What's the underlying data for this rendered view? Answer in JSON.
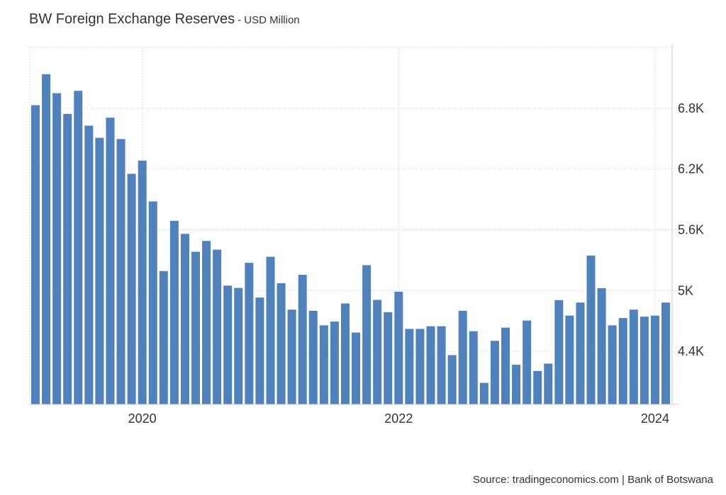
{
  "header": {
    "title": "BW Foreign Exchange Reserves",
    "subtitle": "- USD Million"
  },
  "footer": {
    "source": "Source: tradingeconomics.com | Bank of Botswana"
  },
  "colors": {
    "bar": "#4f81bd",
    "grid": "#dddddd",
    "text": "#333333"
  },
  "chart_data": {
    "type": "bar",
    "title": "BW Foreign Exchange Reserves - USD Million",
    "xlabel": "",
    "ylabel": "USD Million",
    "ylim": [
      3877,
      7400
    ],
    "grid": true,
    "y_axis_side": "right",
    "y_ticks": [
      4400,
      5000,
      5600,
      6200,
      6800
    ],
    "y_tick_labels": [
      "4.4K",
      "5K",
      "5.6K",
      "6.2K",
      "6.8K"
    ],
    "x_ticks": [
      {
        "label": "2020",
        "category": "Jan 2020"
      },
      {
        "label": "2022",
        "category": "Jan 2022"
      },
      {
        "label": "2024",
        "category": "Jan 2024"
      }
    ],
    "categories": [
      "Mar 2019",
      "Apr 2019",
      "May 2019",
      "Jun 2019",
      "Jul 2019",
      "Aug 2019",
      "Sep 2019",
      "Oct 2019",
      "Nov 2019",
      "Dec 2019",
      "Jan 2020",
      "Feb 2020",
      "Mar 2020",
      "Apr 2020",
      "May 2020",
      "Jun 2020",
      "Jul 2020",
      "Aug 2020",
      "Sep 2020",
      "Oct 2020",
      "Nov 2020",
      "Dec 2020",
      "Jan 2021",
      "Feb 2021",
      "Mar 2021",
      "Apr 2021",
      "May 2021",
      "Jun 2021",
      "Jul 2021",
      "Aug 2021",
      "Sep 2021",
      "Oct 2021",
      "Nov 2021",
      "Dec 2021",
      "Jan 2022",
      "Feb 2022",
      "Mar 2022",
      "Apr 2022",
      "May 2022",
      "Jun 2022",
      "Jul 2022",
      "Aug 2022",
      "Sep 2022",
      "Oct 2022",
      "Nov 2022",
      "Dec 2022",
      "Jan 2023",
      "Feb 2023",
      "Mar 2023",
      "Apr 2023",
      "May 2023",
      "Jun 2023",
      "Jul 2023",
      "Aug 2023",
      "Sep 2023",
      "Oct 2023",
      "Nov 2023",
      "Dec 2023",
      "Jan 2024",
      "Feb 2024"
    ],
    "values": [
      6830,
      7136,
      6948,
      6744,
      6972,
      6628,
      6508,
      6707,
      6496,
      6153,
      6283,
      5880,
      5193,
      5689,
      5560,
      5383,
      5490,
      5404,
      5049,
      5026,
      5274,
      4931,
      5334,
      5073,
      4812,
      5156,
      4801,
      4657,
      4694,
      4873,
      4586,
      5251,
      4908,
      4787,
      4989,
      4622,
      4622,
      4648,
      4648,
      4363,
      4801,
      4599,
      4089,
      4504,
      4634,
      4268,
      4704,
      4207,
      4279,
      4906,
      4753,
      4882,
      5346,
      5024,
      4657,
      4729,
      4812,
      4743,
      4753,
      4882
    ]
  }
}
